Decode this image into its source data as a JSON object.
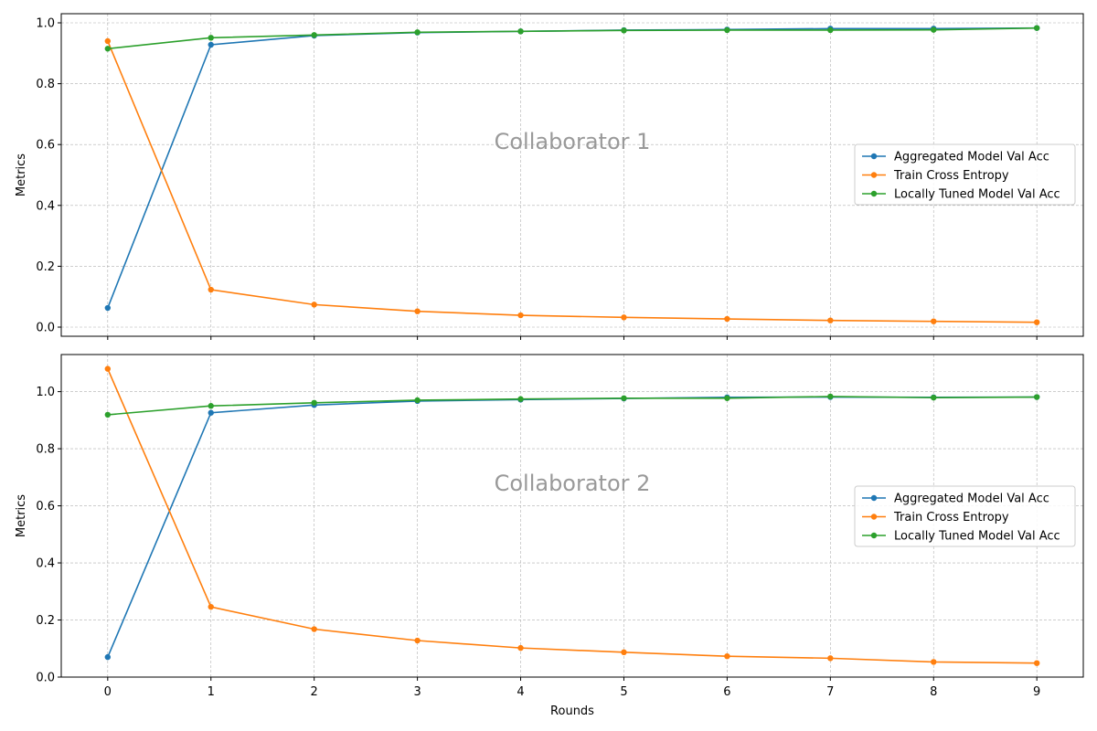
{
  "chart_data": [
    {
      "type": "line",
      "annotation": "Collaborator 1",
      "xlabel": "",
      "ylabel": "Metrics",
      "x": [
        0,
        1,
        2,
        3,
        4,
        5,
        6,
        7,
        8,
        9
      ],
      "xlim": [
        -0.45,
        9.45
      ],
      "ylim": [
        -0.03,
        1.03
      ],
      "yticks": [
        "0.0",
        "0.2",
        "0.4",
        "0.6",
        "0.8",
        "1.0"
      ],
      "xticks_shown": false,
      "grid": true,
      "legend_position": "center-right",
      "series": [
        {
          "name": "Aggregated Model Val Acc",
          "color": "#1f77b4",
          "values": [
            0.063,
            0.928,
            0.958,
            0.968,
            0.972,
            0.976,
            0.978,
            0.981,
            0.981,
            0.983
          ]
        },
        {
          "name": "Train Cross Entropy",
          "color": "#ff7f0e",
          "values": [
            0.94,
            0.123,
            0.074,
            0.052,
            0.039,
            0.032,
            0.027,
            0.022,
            0.019,
            0.016
          ]
        },
        {
          "name": "Locally Tuned Model Val Acc",
          "color": "#2ca02c",
          "values": [
            0.915,
            0.951,
            0.96,
            0.969,
            0.972,
            0.975,
            0.976,
            0.976,
            0.977,
            0.983
          ]
        }
      ]
    },
    {
      "type": "line",
      "annotation": "Collaborator 2",
      "xlabel": "Rounds",
      "ylabel": "Metrics",
      "x": [
        0,
        1,
        2,
        3,
        4,
        5,
        6,
        7,
        8,
        9
      ],
      "xlim": [
        -0.45,
        9.45
      ],
      "ylim": [
        0.0,
        1.13
      ],
      "yticks": [
        "0.0",
        "0.2",
        "0.4",
        "0.6",
        "0.8",
        "1.0"
      ],
      "xticks": [
        "0",
        "1",
        "2",
        "3",
        "4",
        "5",
        "6",
        "7",
        "8",
        "9"
      ],
      "xticks_shown": true,
      "grid": true,
      "legend_position": "center-right",
      "series": [
        {
          "name": "Aggregated Model Val Acc",
          "color": "#1f77b4",
          "values": [
            0.07,
            0.926,
            0.953,
            0.967,
            0.972,
            0.976,
            0.98,
            0.981,
            0.98,
            0.981
          ]
        },
        {
          "name": "Train Cross Entropy",
          "color": "#ff7f0e",
          "values": [
            1.08,
            0.246,
            0.168,
            0.128,
            0.102,
            0.087,
            0.073,
            0.066,
            0.053,
            0.049
          ]
        },
        {
          "name": "Locally Tuned Model Val Acc",
          "color": "#2ca02c",
          "values": [
            0.919,
            0.95,
            0.961,
            0.97,
            0.974,
            0.977,
            0.977,
            0.983,
            0.979,
            0.981
          ]
        }
      ]
    }
  ]
}
